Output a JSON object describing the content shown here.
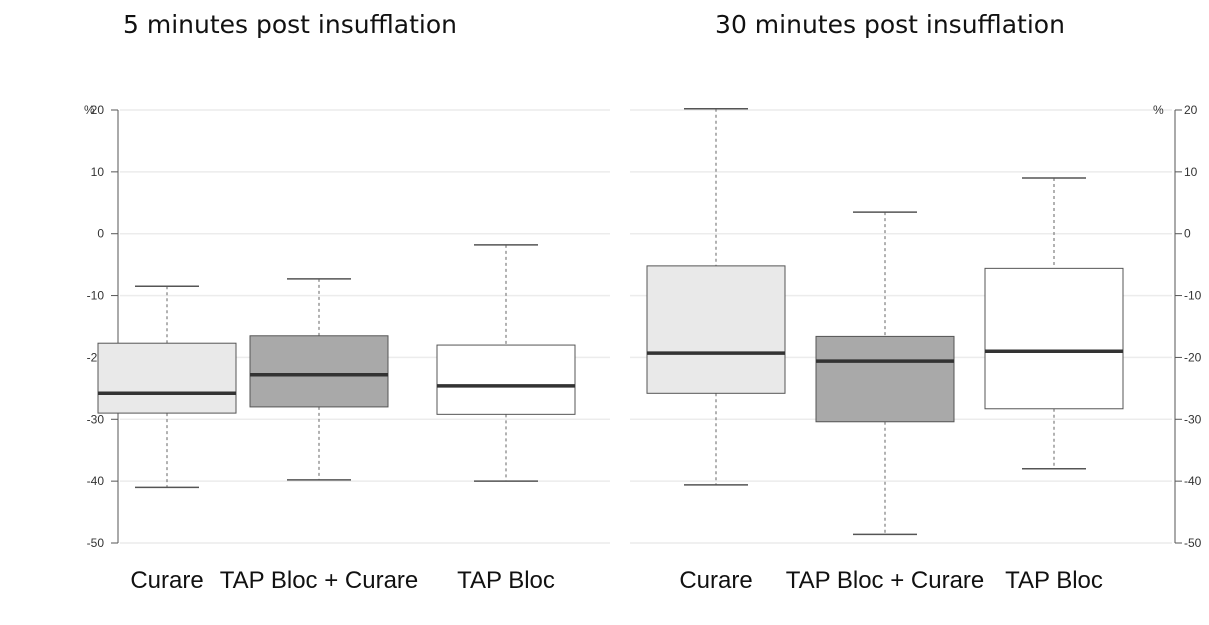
{
  "chart_data": [
    {
      "type": "box",
      "title": "5 minutes post insufflation",
      "ylabel": "%",
      "ylim": [
        -50,
        20
      ],
      "yticks": [
        20,
        10,
        0,
        -10,
        -20,
        -30,
        -40,
        -50
      ],
      "axis_side": "left",
      "grid": true,
      "categories": [
        "Curare",
        "TAP Bloc + Curare",
        "TAP Bloc"
      ],
      "boxes": [
        {
          "category": "Curare",
          "whisker_low": -41,
          "q1": -29,
          "median": -25.8,
          "q3": -17.7,
          "whisker_high": -8.5,
          "fill": "#e9e9e9"
        },
        {
          "category": "TAP Bloc + Curare",
          "whisker_low": -39.8,
          "q1": -28,
          "median": -22.8,
          "q3": -16.5,
          "whisker_high": -7.3,
          "fill": "#a9a9a9"
        },
        {
          "category": "TAP Bloc",
          "whisker_low": -40,
          "q1": -29.2,
          "median": -24.6,
          "q3": -18,
          "whisker_high": -1.8,
          "fill": "#ffffff"
        }
      ]
    },
    {
      "type": "box",
      "title": "30 minutes post insufflation",
      "ylabel": "%",
      "ylim": [
        -50,
        20
      ],
      "yticks": [
        20,
        10,
        0,
        -10,
        -20,
        -30,
        -40,
        -50
      ],
      "axis_side": "right",
      "grid": true,
      "categories": [
        "Curare",
        "TAP Bloc + Curare",
        "TAP Bloc"
      ],
      "boxes": [
        {
          "category": "Curare",
          "whisker_low": -40.6,
          "q1": -25.8,
          "median": -19.3,
          "q3": -5.2,
          "whisker_high": 20.2,
          "fill": "#e9e9e9"
        },
        {
          "category": "TAP Bloc + Curare",
          "whisker_low": -48.6,
          "q1": -30.4,
          "median": -20.6,
          "q3": -16.6,
          "whisker_high": 3.5,
          "fill": "#a9a9a9"
        },
        {
          "category": "TAP Bloc",
          "whisker_low": -38,
          "q1": -28.3,
          "median": -19,
          "q3": -5.6,
          "whisker_high": 9,
          "fill": "#ffffff"
        }
      ]
    }
  ]
}
